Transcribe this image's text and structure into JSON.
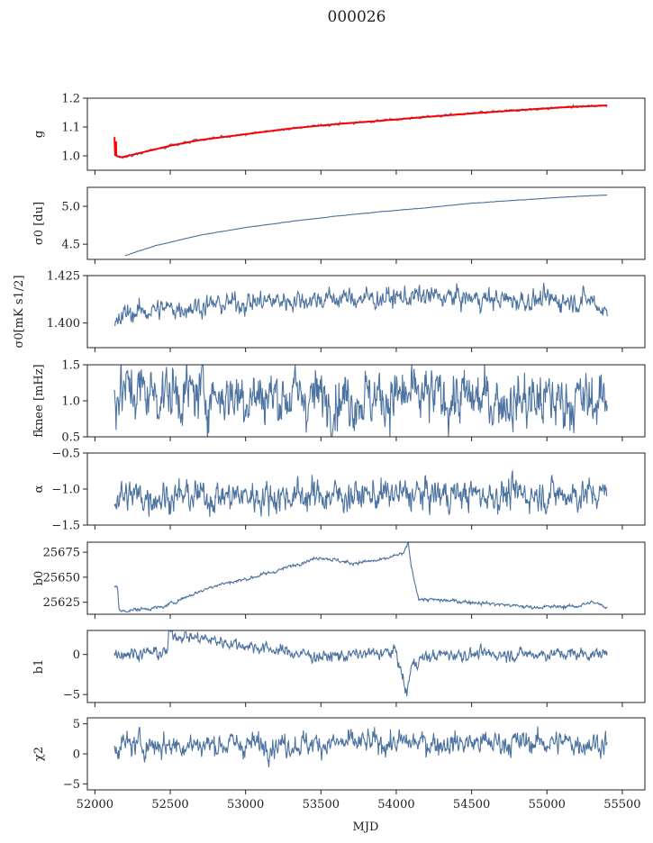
{
  "figure": {
    "title": "000026",
    "xlabel": "MJD"
  },
  "colors": {
    "series": "#4c72a0",
    "overlay": "#ff0000",
    "axis": "#222222"
  },
  "chart_data": [
    {
      "type": "line",
      "ylabel": "g",
      "ylabel_html": "g",
      "xlim": [
        51950,
        55650
      ],
      "ylim": [
        0.95,
        1.2
      ],
      "yticks": [
        "1.0",
        "1.1",
        "1.2"
      ],
      "ytick_values": [
        1.0,
        1.1,
        1.2
      ],
      "overlay": "red fit",
      "series": [
        {
          "x": [
            52130,
            52150,
            52180,
            52300,
            52500,
            52700,
            53000,
            53300,
            53600,
            53900,
            54200,
            54500,
            54800,
            55100,
            55400
          ],
          "y": [
            1.005,
            0.998,
            0.995,
            1.01,
            1.035,
            1.055,
            1.075,
            1.095,
            1.11,
            1.122,
            1.135,
            1.147,
            1.158,
            1.168,
            1.175
          ]
        }
      ]
    },
    {
      "type": "line",
      "ylabel": "σ0 [du]",
      "xlim": [
        51950,
        55650
      ],
      "ylim": [
        4.3,
        5.25
      ],
      "yticks": [
        "4.5",
        "5.0"
      ],
      "ytick_values": [
        4.5,
        5.0
      ],
      "series": [
        {
          "x": [
            52200,
            52400,
            52700,
            53000,
            53300,
            53600,
            53900,
            54200,
            54500,
            54800,
            55100,
            55400
          ],
          "y": [
            4.35,
            4.48,
            4.62,
            4.72,
            4.8,
            4.87,
            4.93,
            4.98,
            5.04,
            5.08,
            5.12,
            5.15
          ]
        }
      ]
    },
    {
      "type": "line",
      "ylabel": "σ0[mK s1/2]",
      "xlim": [
        51950,
        55650
      ],
      "ylim": [
        1.387,
        1.425
      ],
      "yticks": [
        "1.400",
        "1.425"
      ],
      "ytick_values": [
        1.4,
        1.425
      ],
      "series": [
        {
          "x": [
            52130,
            52200,
            52400,
            52700,
            53000,
            53300,
            53600,
            53900,
            54200,
            54500,
            54800,
            55100,
            55300,
            55400
          ],
          "y": [
            1.397,
            1.405,
            1.407,
            1.409,
            1.411,
            1.412,
            1.413,
            1.413,
            1.414,
            1.413,
            1.412,
            1.412,
            1.412,
            1.405
          ]
        }
      ]
    },
    {
      "type": "line",
      "ylabel": "fknee [mHz]",
      "xlim": [
        51950,
        55650
      ],
      "ylim": [
        0.5,
        1.5
      ],
      "yticks": [
        "0.5",
        "1.0",
        "1.5"
      ],
      "ytick_values": [
        0.5,
        1.0,
        1.5
      ],
      "series": [
        {
          "x": [
            52130,
            52500,
            53000,
            53500,
            54000,
            54500,
            55000,
            55400
          ],
          "y": [
            1.15,
            1.1,
            1.08,
            1.05,
            1.05,
            1.02,
            1.0,
            1.0
          ]
        }
      ]
    },
    {
      "type": "line",
      "ylabel": "α",
      "xlim": [
        51950,
        55650
      ],
      "ylim": [
        -1.5,
        -0.5
      ],
      "yticks": [
        "−1.5",
        "−1.0",
        "−0.5"
      ],
      "ytick_values": [
        -1.5,
        -1.0,
        -0.5
      ],
      "series": [
        {
          "x": [
            52130,
            53000,
            54000,
            55400
          ],
          "y": [
            -1.1,
            -1.1,
            -1.08,
            -1.07
          ]
        }
      ]
    },
    {
      "type": "line",
      "ylabel": "b0",
      "xlim": [
        51950,
        55650
      ],
      "ylim": [
        25613,
        25685
      ],
      "yticks": [
        "25625",
        "25650",
        "25675"
      ],
      "ytick_values": [
        25625,
        25650,
        25675
      ],
      "series": [
        {
          "x": [
            52130,
            52150,
            52160,
            52300,
            52450,
            52600,
            52800,
            53000,
            53200,
            53400,
            53500,
            53700,
            53900,
            54050,
            54080,
            54100,
            54150,
            54300,
            54600,
            54900,
            55200,
            55300,
            55400
          ],
          "y": [
            25642,
            25641,
            25616,
            25618,
            25620,
            25630,
            25642,
            25648,
            25656,
            25666,
            25670,
            25664,
            25667,
            25674,
            25684,
            25660,
            25628,
            25627,
            25624,
            25620,
            25621,
            25625,
            25620
          ]
        }
      ]
    },
    {
      "type": "line",
      "ylabel": "b1",
      "xlim": [
        51950,
        55650
      ],
      "ylim": [
        -6,
        3
      ],
      "yticks": [
        "−5",
        "0"
      ],
      "ytick_values": [
        -5,
        0
      ],
      "series": [
        {
          "x": [
            52130,
            52480,
            52490,
            53500,
            54000,
            54070,
            54080,
            54100,
            54150,
            54300,
            55400
          ],
          "y": [
            0.2,
            0.2,
            2.6,
            -0.3,
            0.3,
            -5.2,
            -3.5,
            -1.5,
            -0.6,
            0,
            0.1
          ]
        }
      ]
    },
    {
      "type": "line",
      "ylabel": "χ2",
      "xlim": [
        51950,
        55650
      ],
      "ylim": [
        -6,
        6
      ],
      "yticks": [
        "−5",
        "0",
        "5"
      ],
      "ytick_values": [
        -5,
        0,
        5
      ],
      "series": [
        {
          "x": [
            52130,
            53000,
            54000,
            55000,
            55400
          ],
          "y": [
            1.5,
            1.6,
            1.8,
            1.9,
            1.8
          ]
        }
      ]
    }
  ],
  "xticks": [
    52000,
    52500,
    53000,
    53500,
    54000,
    54500,
    55000,
    55500
  ]
}
